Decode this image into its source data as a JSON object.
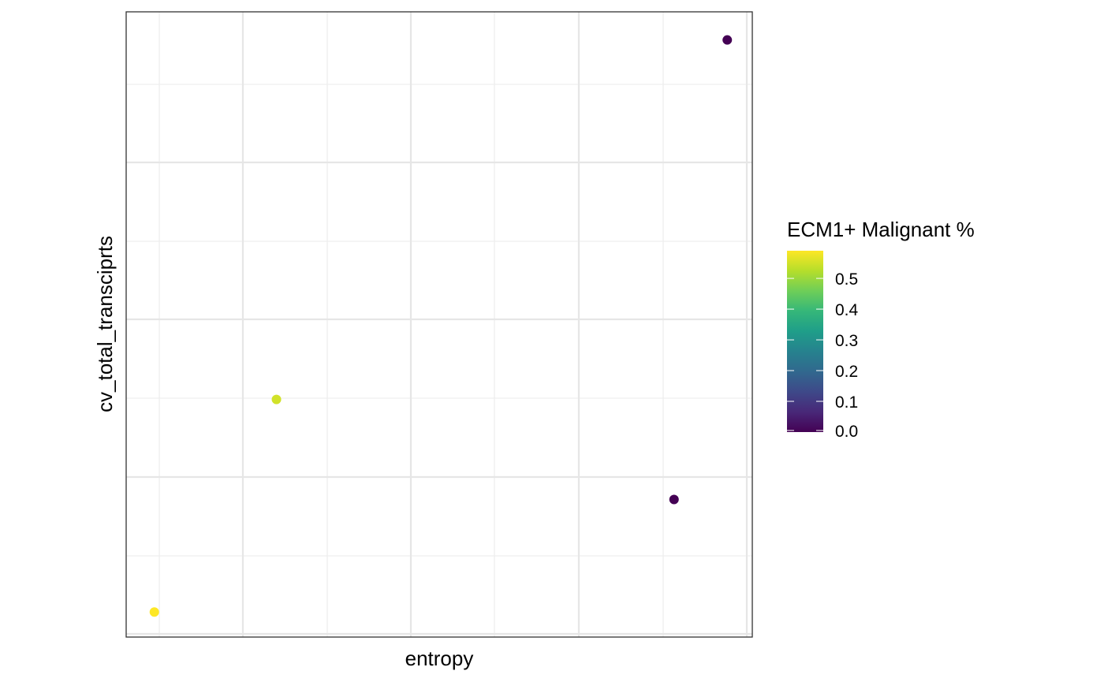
{
  "chart_data": {
    "type": "scatter",
    "title": "",
    "xlabel": "entropy",
    "ylabel": "cv_total_transciprts",
    "xlim": [
      0,
      1
    ],
    "ylim": [
      0,
      1
    ],
    "grid": true,
    "points": [
      {
        "x": 0.045,
        "y": 0.04,
        "value": 0.59
      },
      {
        "x": 0.24,
        "y": 0.38,
        "value": 0.55
      },
      {
        "x": 0.875,
        "y": 0.22,
        "value": 0.0
      },
      {
        "x": 0.96,
        "y": 0.955,
        "value": 0.0
      }
    ],
    "legend": {
      "title": "ECM1+ Malignant %",
      "position": "right",
      "min": 0.0,
      "max": 0.59,
      "ticks": [
        {
          "value": 0.0,
          "label": "0.0"
        },
        {
          "value": 0.1,
          "label": "0.1"
        },
        {
          "value": 0.2,
          "label": "0.2"
        },
        {
          "value": 0.3,
          "label": "0.3"
        },
        {
          "value": 0.4,
          "label": "0.4"
        },
        {
          "value": 0.5,
          "label": "0.5"
        }
      ],
      "colormap": [
        "#440154",
        "#482878",
        "#3e4989",
        "#31688e",
        "#26828e",
        "#1f9e89",
        "#35b779",
        "#6ece58",
        "#b5de2b",
        "#fde725"
      ]
    }
  }
}
